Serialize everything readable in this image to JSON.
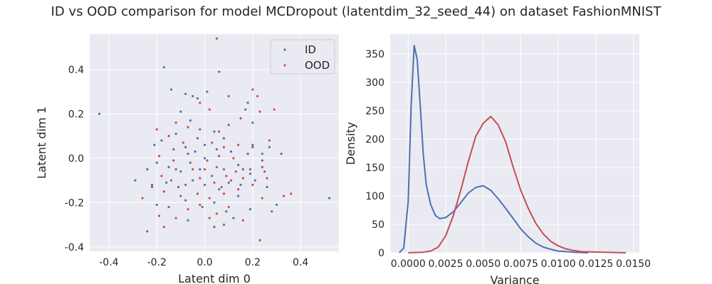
{
  "suptitle": "ID vs OOD comparison for model MCDropout (latentdim_32_seed_44) on dataset FashionMNIST",
  "colors": {
    "id": "#4c72b0",
    "ood": "#c44e52",
    "axes_bg": "#eaeaf2",
    "grid": "#ffffff"
  },
  "chart_data": [
    {
      "type": "scatter",
      "xlabel": "Latent dim 0",
      "ylabel": "Latent dim 1",
      "xlim": [
        -0.48,
        0.56
      ],
      "ylim": [
        -0.42,
        0.56
      ],
      "xticks": [
        -0.4,
        -0.2,
        0.0,
        0.2,
        0.4
      ],
      "yticks": [
        -0.4,
        -0.2,
        0.0,
        0.2,
        0.4
      ],
      "grid": true,
      "legend": "upper right",
      "series": [
        {
          "name": "ID",
          "points": [
            [
              -0.44,
              0.2
            ],
            [
              -0.17,
              0.41
            ],
            [
              -0.14,
              0.31
            ],
            [
              -0.08,
              0.29
            ],
            [
              -0.05,
              0.28
            ],
            [
              -0.03,
              0.27
            ],
            [
              0.01,
              0.3
            ],
            [
              -0.1,
              0.21
            ],
            [
              -0.06,
              0.17
            ],
            [
              -0.02,
              0.13
            ],
            [
              0.04,
              0.12
            ],
            [
              0.1,
              0.15
            ],
            [
              0.17,
              0.22
            ],
            [
              0.2,
              0.16
            ],
            [
              0.18,
              0.25
            ],
            [
              -0.21,
              0.06
            ],
            [
              -0.18,
              0.08
            ],
            [
              -0.13,
              0.04
            ],
            [
              -0.08,
              0.05
            ],
            [
              -0.04,
              0.03
            ],
            [
              0.0,
              0.06
            ],
            [
              0.05,
              0.04
            ],
            [
              0.11,
              0.03
            ],
            [
              0.2,
              0.06
            ],
            [
              0.24,
              0.02
            ],
            [
              0.27,
              0.05
            ],
            [
              -0.24,
              -0.05
            ],
            [
              -0.2,
              -0.02
            ],
            [
              -0.15,
              -0.04
            ],
            [
              -0.1,
              -0.06
            ],
            [
              -0.06,
              -0.02
            ],
            [
              -0.02,
              -0.05
            ],
            [
              0.03,
              -0.08
            ],
            [
              0.08,
              -0.05
            ],
            [
              0.14,
              -0.03
            ],
            [
              0.19,
              -0.07
            ],
            [
              0.24,
              -0.04
            ],
            [
              -0.29,
              -0.1
            ],
            [
              -0.22,
              -0.13
            ],
            [
              -0.16,
              -0.11
            ],
            [
              -0.11,
              -0.13
            ],
            [
              -0.05,
              -0.1
            ],
            [
              0.0,
              -0.12
            ],
            [
              0.06,
              -0.14
            ],
            [
              0.1,
              -0.11
            ],
            [
              0.15,
              -0.12
            ],
            [
              0.21,
              -0.1
            ],
            [
              0.26,
              -0.13
            ],
            [
              -0.2,
              -0.21
            ],
            [
              -0.15,
              -0.22
            ],
            [
              -0.08,
              -0.19
            ],
            [
              -0.01,
              -0.22
            ],
            [
              0.04,
              -0.2
            ],
            [
              0.09,
              -0.24
            ],
            [
              0.14,
              -0.17
            ],
            [
              0.19,
              -0.23
            ],
            [
              0.3,
              -0.21
            ],
            [
              0.52,
              -0.18
            ],
            [
              -0.07,
              -0.28
            ],
            [
              0.04,
              -0.31
            ],
            [
              0.12,
              -0.27
            ],
            [
              0.0,
              0.0
            ],
            [
              0.08,
              0.09
            ],
            [
              -0.12,
              0.11
            ],
            [
              0.16,
              -0.05
            ]
          ]
        },
        {
          "name": "OOD",
          "points": [
            [
              0.05,
              0.54
            ],
            [
              0.06,
              0.39
            ],
            [
              -0.02,
              0.25
            ],
            [
              0.1,
              0.28
            ],
            [
              0.2,
              0.31
            ],
            [
              0.22,
              0.28
            ],
            [
              0.29,
              0.22
            ],
            [
              -0.12,
              0.16
            ],
            [
              -0.07,
              0.14
            ],
            [
              0.02,
              0.22
            ],
            [
              0.06,
              0.12
            ],
            [
              0.15,
              0.18
            ],
            [
              0.23,
              0.21
            ],
            [
              -0.2,
              0.13
            ],
            [
              -0.15,
              0.1
            ],
            [
              -0.09,
              0.07
            ],
            [
              -0.03,
              0.09
            ],
            [
              0.03,
              0.07
            ],
            [
              0.08,
              0.05
            ],
            [
              0.14,
              0.06
            ],
            [
              0.2,
              0.05
            ],
            [
              0.27,
              0.08
            ],
            [
              -0.19,
              0.01
            ],
            [
              -0.13,
              -0.01
            ],
            [
              -0.07,
              0.02
            ],
            [
              0.01,
              -0.01
            ],
            [
              0.06,
              0.01
            ],
            [
              0.12,
              0.0
            ],
            [
              0.18,
              0.02
            ],
            [
              0.24,
              -0.01
            ],
            [
              0.32,
              0.02
            ],
            [
              -0.18,
              -0.08
            ],
            [
              -0.12,
              -0.05
            ],
            [
              -0.05,
              -0.05
            ],
            [
              0.0,
              -0.05
            ],
            [
              0.05,
              -0.04
            ],
            [
              0.09,
              -0.08
            ],
            [
              0.13,
              -0.06
            ],
            [
              0.19,
              -0.05
            ],
            [
              0.25,
              -0.06
            ],
            [
              -0.22,
              -0.12
            ],
            [
              -0.14,
              -0.1
            ],
            [
              -0.08,
              -0.12
            ],
            [
              -0.02,
              -0.09
            ],
            [
              0.04,
              -0.11
            ],
            [
              0.07,
              -0.13
            ],
            [
              0.11,
              -0.1
            ],
            [
              0.16,
              -0.09
            ],
            [
              0.26,
              -0.09
            ],
            [
              0.33,
              -0.17
            ],
            [
              0.36,
              -0.16
            ],
            [
              -0.26,
              -0.18
            ],
            [
              -0.17,
              -0.15
            ],
            [
              -0.1,
              -0.17
            ],
            [
              -0.03,
              -0.16
            ],
            [
              0.02,
              -0.18
            ],
            [
              0.08,
              -0.16
            ],
            [
              0.14,
              -0.14
            ],
            [
              0.2,
              -0.12
            ],
            [
              0.24,
              -0.18
            ],
            [
              -0.24,
              -0.33
            ],
            [
              -0.19,
              -0.26
            ],
            [
              -0.12,
              -0.27
            ],
            [
              -0.07,
              -0.23
            ],
            [
              -0.02,
              -0.21
            ],
            [
              0.05,
              -0.25
            ],
            [
              0.1,
              -0.22
            ],
            [
              0.16,
              -0.28
            ],
            [
              0.23,
              -0.37
            ],
            [
              -0.17,
              -0.31
            ],
            [
              0.08,
              -0.3
            ],
            [
              0.02,
              -0.27
            ],
            [
              0.28,
              -0.24
            ]
          ]
        }
      ]
    },
    {
      "type": "line",
      "xlabel": "Variance",
      "ylabel": "Density",
      "xlim": [
        -0.0012,
        0.0154
      ],
      "ylim": [
        0,
        385
      ],
      "xticks": [
        0.0,
        0.0025,
        0.005,
        0.0075,
        0.01,
        0.0125,
        0.015
      ],
      "xticklabels": [
        "0.0000",
        "0.0025",
        "0.0050",
        "0.0075",
        "0.0100",
        "0.0125",
        "0.0150"
      ],
      "yticks": [
        0,
        50,
        100,
        150,
        200,
        250,
        300,
        350
      ],
      "grid": true,
      "series": [
        {
          "name": "ID",
          "x": [
            -0.0006,
            -0.0003,
            0.0,
            0.0002,
            0.0004,
            0.0006,
            0.0008,
            0.001,
            0.0012,
            0.0015,
            0.0018,
            0.0021,
            0.0025,
            0.003,
            0.0035,
            0.004,
            0.0045,
            0.005,
            0.0055,
            0.006,
            0.0065,
            0.007,
            0.0075,
            0.008,
            0.0085,
            0.009,
            0.0095,
            0.01,
            0.0105,
            0.011,
            0.012
          ],
          "y": [
            0,
            8,
            90,
            260,
            365,
            340,
            260,
            175,
            120,
            85,
            66,
            60,
            62,
            72,
            88,
            105,
            115,
            118,
            110,
            95,
            78,
            60,
            42,
            28,
            17,
            10,
            6,
            3,
            2,
            1,
            0
          ]
        },
        {
          "name": "OOD",
          "x": [
            0.0,
            0.001,
            0.0015,
            0.002,
            0.0025,
            0.003,
            0.0035,
            0.004,
            0.0045,
            0.005,
            0.0055,
            0.006,
            0.0065,
            0.007,
            0.0075,
            0.008,
            0.0085,
            0.009,
            0.0095,
            0.01,
            0.0105,
            0.011,
            0.0115,
            0.012,
            0.013,
            0.014,
            0.0145
          ],
          "y": [
            0,
            1,
            3,
            10,
            30,
            65,
            110,
            160,
            205,
            228,
            240,
            225,
            195,
            150,
            110,
            78,
            52,
            33,
            20,
            12,
            7,
            4,
            2,
            1.5,
            1,
            0.3,
            0
          ]
        }
      ]
    }
  ]
}
